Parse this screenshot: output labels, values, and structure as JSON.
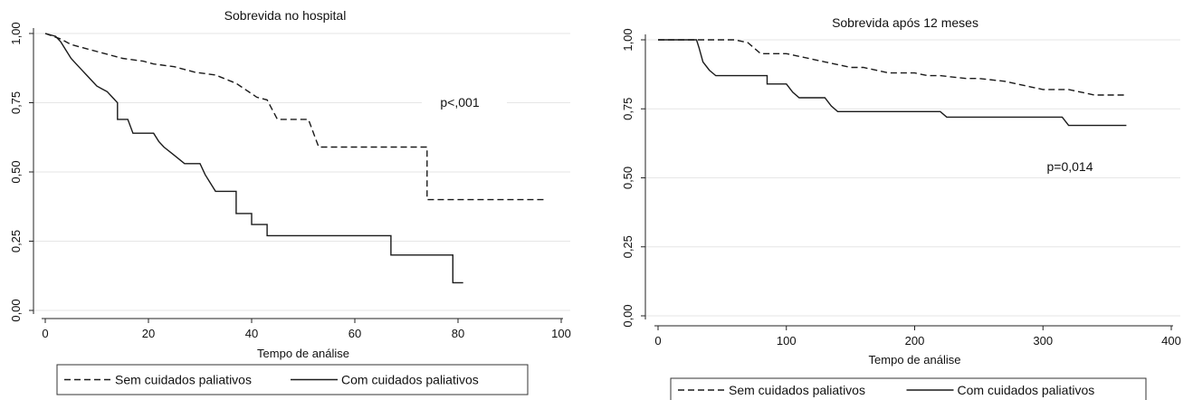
{
  "chart_data": [
    {
      "type": "line",
      "title": "Sobrevida no hospital",
      "xlabel": "Tempo de análise",
      "ylabel": "",
      "xlim": [
        0,
        100
      ],
      "ylim": [
        0,
        1
      ],
      "x_ticks": [
        "0",
        "20",
        "40",
        "60",
        "80",
        "100"
      ],
      "y_ticks": [
        "0,00",
        "0,25",
        "0,50",
        "0,75",
        "1,00"
      ],
      "grid": true,
      "annotation": "p<,001",
      "legend": {
        "placement": "bottom",
        "items": [
          "Sem cuidados paliativos",
          "Com cuidados paliativos"
        ]
      },
      "series": [
        {
          "name": "Sem cuidados paliativos",
          "style": "dashed",
          "points": [
            [
              0,
              1.0
            ],
            [
              3,
              0.98
            ],
            [
              5,
              0.96
            ],
            [
              7,
              0.95
            ],
            [
              9,
              0.94
            ],
            [
              11,
              0.93
            ],
            [
              13,
              0.92
            ],
            [
              15,
              0.91
            ],
            [
              19,
              0.9
            ],
            [
              21,
              0.89
            ],
            [
              25,
              0.88
            ],
            [
              29,
              0.86
            ],
            [
              33,
              0.85
            ],
            [
              37,
              0.82
            ],
            [
              41,
              0.77
            ],
            [
              43,
              0.76
            ],
            [
              45,
              0.69
            ],
            [
              51,
              0.69
            ],
            [
              53,
              0.59
            ],
            [
              74,
              0.59
            ],
            [
              74,
              0.4
            ],
            [
              97,
              0.4
            ]
          ]
        },
        {
          "name": "Com cuidados paliativos",
          "style": "solid",
          "points": [
            [
              0,
              1.0
            ],
            [
              2,
              0.99
            ],
            [
              3,
              0.97
            ],
            [
              4,
              0.94
            ],
            [
              5,
              0.91
            ],
            [
              6,
              0.89
            ],
            [
              7,
              0.87
            ],
            [
              8,
              0.85
            ],
            [
              9,
              0.83
            ],
            [
              10,
              0.81
            ],
            [
              11,
              0.8
            ],
            [
              12,
              0.79
            ],
            [
              13,
              0.77
            ],
            [
              14,
              0.75
            ],
            [
              14,
              0.69
            ],
            [
              16,
              0.69
            ],
            [
              17,
              0.64
            ],
            [
              21,
              0.64
            ],
            [
              22,
              0.61
            ],
            [
              23,
              0.59
            ],
            [
              25,
              0.56
            ],
            [
              27,
              0.53
            ],
            [
              30,
              0.53
            ],
            [
              31,
              0.49
            ],
            [
              32,
              0.46
            ],
            [
              33,
              0.43
            ],
            [
              37,
              0.43
            ],
            [
              37,
              0.35
            ],
            [
              40,
              0.35
            ],
            [
              40,
              0.31
            ],
            [
              43,
              0.31
            ],
            [
              43,
              0.27
            ],
            [
              67,
              0.27
            ],
            [
              67,
              0.2
            ],
            [
              79,
              0.2
            ],
            [
              79,
              0.1
            ],
            [
              81,
              0.1
            ]
          ]
        }
      ]
    },
    {
      "type": "line",
      "title": "Sobrevida após 12 meses",
      "xlabel": "Tempo de análise",
      "ylabel": "",
      "xlim": [
        0,
        400
      ],
      "ylim": [
        0,
        1
      ],
      "x_ticks": [
        "0",
        "100",
        "200",
        "300",
        "400"
      ],
      "y_ticks": [
        "0,00",
        "0,25",
        "0,50",
        "0,75",
        "1,00"
      ],
      "grid": true,
      "annotation": "p=0,014",
      "legend": {
        "placement": "bottom",
        "items": [
          "Sem cuidados paliativos",
          "Com cuidados paliativos"
        ]
      },
      "series": [
        {
          "name": "Sem cuidados paliativos",
          "style": "dashed",
          "points": [
            [
              0,
              1.0
            ],
            [
              60,
              1.0
            ],
            [
              70,
              0.99
            ],
            [
              80,
              0.95
            ],
            [
              90,
              0.95
            ],
            [
              100,
              0.95
            ],
            [
              110,
              0.94
            ],
            [
              120,
              0.93
            ],
            [
              130,
              0.92
            ],
            [
              140,
              0.91
            ],
            [
              150,
              0.9
            ],
            [
              160,
              0.9
            ],
            [
              170,
              0.89
            ],
            [
              180,
              0.88
            ],
            [
              200,
              0.88
            ],
            [
              210,
              0.87
            ],
            [
              220,
              0.87
            ],
            [
              240,
              0.86
            ],
            [
              250,
              0.86
            ],
            [
              270,
              0.85
            ],
            [
              290,
              0.83
            ],
            [
              300,
              0.82
            ],
            [
              320,
              0.82
            ],
            [
              340,
              0.8
            ],
            [
              365,
              0.8
            ]
          ]
        },
        {
          "name": "Com cuidados paliativos",
          "style": "solid",
          "points": [
            [
              0,
              1.0
            ],
            [
              30,
              1.0
            ],
            [
              32,
              0.97
            ],
            [
              35,
              0.92
            ],
            [
              40,
              0.89
            ],
            [
              45,
              0.87
            ],
            [
              85,
              0.87
            ],
            [
              85,
              0.84
            ],
            [
              100,
              0.84
            ],
            [
              105,
              0.81
            ],
            [
              110,
              0.79
            ],
            [
              130,
              0.79
            ],
            [
              135,
              0.76
            ],
            [
              140,
              0.74
            ],
            [
              220,
              0.74
            ],
            [
              225,
              0.72
            ],
            [
              315,
              0.72
            ],
            [
              320,
              0.69
            ],
            [
              365,
              0.69
            ]
          ]
        }
      ]
    }
  ]
}
